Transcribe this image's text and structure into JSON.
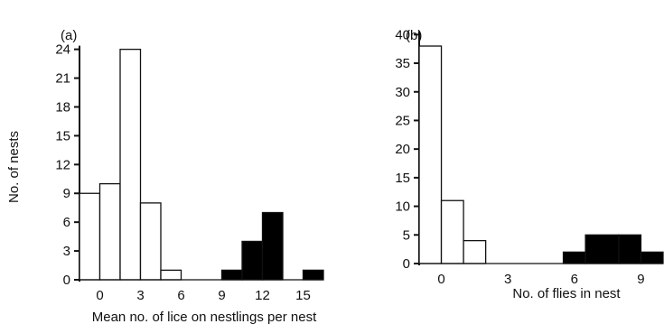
{
  "chart_data": [
    {
      "type": "bar",
      "panel_label": "(a)",
      "title": "",
      "xlabel": "Mean no. of lice on nestlings per nest",
      "ylabel": "No. of nests",
      "xticks": [
        0,
        3,
        6,
        9,
        12,
        15
      ],
      "yticks": [
        0,
        3,
        6,
        9,
        12,
        15,
        18,
        21,
        24
      ],
      "xlim": [
        -1.5,
        16.5
      ],
      "ylim": [
        0,
        25
      ],
      "grid": false,
      "legend": "none",
      "bin_width": 1.5,
      "series": [
        {
          "fill": "#ffffff",
          "bins": [
            {
              "x0": -1.5,
              "x1": 0,
              "y": 9
            },
            {
              "x0": 0,
              "x1": 1.5,
              "y": 10
            },
            {
              "x0": 1.5,
              "x1": 3,
              "y": 24
            },
            {
              "x0": 3,
              "x1": 4.5,
              "y": 8
            },
            {
              "x0": 4.5,
              "x1": 6,
              "y": 1
            }
          ]
        },
        {
          "fill": "#000000",
          "bins": [
            {
              "x0": 9,
              "x1": 10.5,
              "y": 1
            },
            {
              "x0": 10.5,
              "x1": 12,
              "y": 4
            },
            {
              "x0": 12,
              "x1": 13.5,
              "y": 7
            },
            {
              "x0": 15,
              "x1": 16.5,
              "y": 1
            }
          ]
        }
      ]
    },
    {
      "type": "bar",
      "panel_label": "(b)",
      "title": "",
      "xlabel": "No. of flies in nest",
      "ylabel": "",
      "xticks": [
        0,
        3,
        6,
        9
      ],
      "yticks": [
        0,
        5,
        10,
        15,
        20,
        25,
        30,
        35,
        40
      ],
      "xlim": [
        -1,
        10
      ],
      "ylim": [
        0,
        41
      ],
      "grid": false,
      "legend": "none",
      "bin_width": 1,
      "series": [
        {
          "fill": "#ffffff",
          "bins": [
            {
              "x0": -1,
              "x1": 0,
              "y": 38
            },
            {
              "x0": 0,
              "x1": 1,
              "y": 11
            },
            {
              "x0": 1,
              "x1": 2,
              "y": 4
            }
          ]
        },
        {
          "fill": "#000000",
          "bins": [
            {
              "x0": 5.5,
              "x1": 6.5,
              "y": 2
            },
            {
              "x0": 6.5,
              "x1": 8,
              "y": 5
            },
            {
              "x0": 8,
              "x1": 9,
              "y": 5
            },
            {
              "x0": 9,
              "x1": 10,
              "y": 2
            }
          ]
        }
      ]
    }
  ]
}
